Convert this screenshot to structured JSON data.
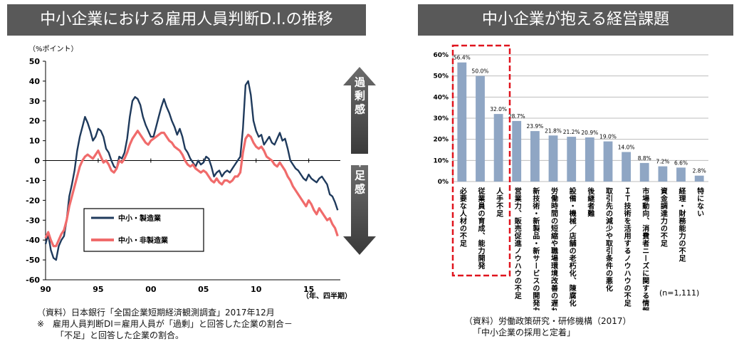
{
  "left": {
    "title": "中小企業における雇用人員判断D.I.の推移",
    "unit_label": "（%ポイント）",
    "x_unit_label": "（年、四半期）",
    "upper_arrow_label": "過剰感",
    "lower_arrow_label": "不足感",
    "notes": [
      "（資料）日本銀行「全国企業短期経済観測調査」2017年12月",
      "※　雇用人員判断DI＝雇用人員が「過剰」と回答した企業の割合－",
      "「不足」と回答した企業の割合。"
    ]
  },
  "right": {
    "title": "中小企業が抱える経営課題",
    "sample_note": "(n=1,111)",
    "notes": [
      "（資料）労働政策研究・研修機構（2017）",
      "「中小企業の採用と定着」"
    ]
  },
  "colors": {
    "manufacturing": "#1f3a5c",
    "non_manufacturing": "#f06b6b",
    "bar": "#8fa6c4",
    "highlight": "#e0141e",
    "header_bg": "#595959"
  },
  "chart_data": [
    {
      "type": "line",
      "title": "中小企業における雇用人員判断D.I.の推移",
      "ylabel": "（%ポイント）",
      "xlabel": "（年、四半期）",
      "ylim": [
        -60,
        50
      ],
      "yticks": [
        50,
        40,
        30,
        20,
        10,
        0,
        -10,
        -20,
        -30,
        -40,
        -50,
        -60
      ],
      "xlim": [
        1990,
        2018
      ],
      "xticks": [
        1990,
        1995,
        2000,
        2005,
        2010,
        2015
      ],
      "xtick_labels": [
        "90",
        "95",
        "00",
        "05",
        "10",
        "15"
      ],
      "legend_position": "lower-left",
      "series": [
        {
          "name": "中小・製造業",
          "points": [
            [
              1990.0,
              -42
            ],
            [
              1990.25,
              -37
            ],
            [
              1990.5,
              -45
            ],
            [
              1990.75,
              -49
            ],
            [
              1991.0,
              -50
            ],
            [
              1991.25,
              -43
            ],
            [
              1991.5,
              -40
            ],
            [
              1991.75,
              -38
            ],
            [
              1992.0,
              -30
            ],
            [
              1992.25,
              -18
            ],
            [
              1992.5,
              -12
            ],
            [
              1992.75,
              -5
            ],
            [
              1993.0,
              5
            ],
            [
              1993.25,
              12
            ],
            [
              1993.5,
              17
            ],
            [
              1993.75,
              22
            ],
            [
              1994.0,
              19
            ],
            [
              1994.25,
              15
            ],
            [
              1994.5,
              10
            ],
            [
              1994.75,
              12
            ],
            [
              1995.0,
              16
            ],
            [
              1995.25,
              15
            ],
            [
              1995.5,
              12
            ],
            [
              1995.75,
              6
            ],
            [
              1996.0,
              4
            ],
            [
              1996.25,
              0
            ],
            [
              1996.5,
              -3
            ],
            [
              1996.75,
              -4
            ],
            [
              1997.0,
              2
            ],
            [
              1997.25,
              1
            ],
            [
              1997.5,
              4
            ],
            [
              1997.75,
              11
            ],
            [
              1998.0,
              22
            ],
            [
              1998.25,
              30
            ],
            [
              1998.5,
              32
            ],
            [
              1998.75,
              31
            ],
            [
              1999.0,
              28
            ],
            [
              1999.25,
              22
            ],
            [
              1999.5,
              18
            ],
            [
              1999.75,
              15
            ],
            [
              2000.0,
              12
            ],
            [
              2000.25,
              12
            ],
            [
              2000.5,
              17
            ],
            [
              2000.75,
              22
            ],
            [
              2001.0,
              27
            ],
            [
              2001.25,
              31
            ],
            [
              2001.5,
              27
            ],
            [
              2001.75,
              24
            ],
            [
              2002.0,
              20
            ],
            [
              2002.25,
              17
            ],
            [
              2002.5,
              13
            ],
            [
              2002.75,
              16
            ],
            [
              2003.0,
              12
            ],
            [
              2003.25,
              6
            ],
            [
              2003.5,
              4
            ],
            [
              2003.75,
              1
            ],
            [
              2004.0,
              -1
            ],
            [
              2004.25,
              -3
            ],
            [
              2004.5,
              0
            ],
            [
              2004.75,
              -2
            ],
            [
              2005.0,
              -1
            ],
            [
              2005.25,
              2
            ],
            [
              2005.5,
              1
            ],
            [
              2005.75,
              -3
            ],
            [
              2006.0,
              -8
            ],
            [
              2006.25,
              -6
            ],
            [
              2006.5,
              -5
            ],
            [
              2006.75,
              -8
            ],
            [
              2007.0,
              -6
            ],
            [
              2007.25,
              -5
            ],
            [
              2007.5,
              -6
            ],
            [
              2007.75,
              -4
            ],
            [
              2008.0,
              -2
            ],
            [
              2008.25,
              0
            ],
            [
              2008.5,
              2
            ],
            [
              2008.75,
              16
            ],
            [
              2009.0,
              38
            ],
            [
              2009.25,
              40
            ],
            [
              2009.5,
              33
            ],
            [
              2009.75,
              20
            ],
            [
              2010.0,
              15
            ],
            [
              2010.25,
              12
            ],
            [
              2010.5,
              13
            ],
            [
              2010.75,
              8
            ],
            [
              2011.0,
              10
            ],
            [
              2011.25,
              12
            ],
            [
              2011.5,
              9
            ],
            [
              2011.75,
              8
            ],
            [
              2012.0,
              11
            ],
            [
              2012.25,
              14
            ],
            [
              2012.5,
              10
            ],
            [
              2012.75,
              11
            ],
            [
              2013.0,
              6
            ],
            [
              2013.25,
              0
            ],
            [
              2013.5,
              -2
            ],
            [
              2013.75,
              -4
            ],
            [
              2014.0,
              -5
            ],
            [
              2014.25,
              -7
            ],
            [
              2014.5,
              -9
            ],
            [
              2014.75,
              -10
            ],
            [
              2015.0,
              -7
            ],
            [
              2015.25,
              -9
            ],
            [
              2015.5,
              -10
            ],
            [
              2015.75,
              -11
            ],
            [
              2016.0,
              -9
            ],
            [
              2016.25,
              -8
            ],
            [
              2016.5,
              -10
            ],
            [
              2016.75,
              -12
            ],
            [
              2017.0,
              -17
            ],
            [
              2017.25,
              -18
            ],
            [
              2017.5,
              -21
            ],
            [
              2017.75,
              -25
            ]
          ]
        },
        {
          "name": "中小・非製造業",
          "points": [
            [
              1990.0,
              -39
            ],
            [
              1990.25,
              -36
            ],
            [
              1990.5,
              -40
            ],
            [
              1990.75,
              -43
            ],
            [
              1991.0,
              -43
            ],
            [
              1991.25,
              -40
            ],
            [
              1991.5,
              -37
            ],
            [
              1991.75,
              -35
            ],
            [
              1992.0,
              -30
            ],
            [
              1992.25,
              -23
            ],
            [
              1992.5,
              -18
            ],
            [
              1992.75,
              -13
            ],
            [
              1993.0,
              -8
            ],
            [
              1993.25,
              -3
            ],
            [
              1993.5,
              0
            ],
            [
              1993.75,
              2
            ],
            [
              1994.0,
              3
            ],
            [
              1994.25,
              2
            ],
            [
              1994.5,
              1
            ],
            [
              1994.75,
              3
            ],
            [
              1995.0,
              5
            ],
            [
              1995.25,
              2
            ],
            [
              1995.5,
              -1
            ],
            [
              1995.75,
              0
            ],
            [
              1996.0,
              -2
            ],
            [
              1996.25,
              -5
            ],
            [
              1996.5,
              -6
            ],
            [
              1996.75,
              -4
            ],
            [
              1997.0,
              0
            ],
            [
              1997.25,
              -1
            ],
            [
              1997.5,
              1
            ],
            [
              1997.75,
              4
            ],
            [
              1998.0,
              8
            ],
            [
              1998.25,
              11
            ],
            [
              1998.5,
              13
            ],
            [
              1998.75,
              15
            ],
            [
              1999.0,
              13
            ],
            [
              1999.25,
              11
            ],
            [
              1999.5,
              9
            ],
            [
              1999.75,
              8
            ],
            [
              2000.0,
              10
            ],
            [
              2000.25,
              11
            ],
            [
              2000.5,
              12
            ],
            [
              2000.75,
              13
            ],
            [
              2001.0,
              14
            ],
            [
              2001.25,
              14
            ],
            [
              2001.5,
              12
            ],
            [
              2001.75,
              10
            ],
            [
              2002.0,
              9
            ],
            [
              2002.25,
              7
            ],
            [
              2002.5,
              6
            ],
            [
              2002.75,
              5
            ],
            [
              2003.0,
              3
            ],
            [
              2003.25,
              0
            ],
            [
              2003.5,
              -2
            ],
            [
              2003.75,
              -3
            ],
            [
              2004.0,
              -2
            ],
            [
              2004.25,
              -4
            ],
            [
              2004.5,
              -5
            ],
            [
              2004.75,
              -6
            ],
            [
              2005.0,
              -5
            ],
            [
              2005.25,
              -6
            ],
            [
              2005.5,
              -8
            ],
            [
              2005.75,
              -10
            ],
            [
              2006.0,
              -11
            ],
            [
              2006.25,
              -9
            ],
            [
              2006.5,
              -11
            ],
            [
              2006.75,
              -12
            ],
            [
              2007.0,
              -10
            ],
            [
              2007.25,
              -10
            ],
            [
              2007.5,
              -11
            ],
            [
              2007.75,
              -10
            ],
            [
              2008.0,
              -8
            ],
            [
              2008.25,
              -8
            ],
            [
              2008.5,
              -6
            ],
            [
              2008.75,
              4
            ],
            [
              2009.0,
              11
            ],
            [
              2009.25,
              13
            ],
            [
              2009.5,
              12
            ],
            [
              2009.75,
              9
            ],
            [
              2010.0,
              7
            ],
            [
              2010.25,
              6
            ],
            [
              2010.5,
              7
            ],
            [
              2010.75,
              5
            ],
            [
              2011.0,
              2
            ],
            [
              2011.25,
              1
            ],
            [
              2011.5,
              0
            ],
            [
              2011.75,
              -2
            ],
            [
              2012.0,
              -3
            ],
            [
              2012.25,
              -1
            ],
            [
              2012.5,
              -3
            ],
            [
              2012.75,
              -5
            ],
            [
              2013.0,
              -8
            ],
            [
              2013.25,
              -10
            ],
            [
              2013.5,
              -13
            ],
            [
              2013.75,
              -15
            ],
            [
              2014.0,
              -17
            ],
            [
              2014.25,
              -19
            ],
            [
              2014.5,
              -21
            ],
            [
              2014.75,
              -23
            ],
            [
              2015.0,
              -20
            ],
            [
              2015.25,
              -22
            ],
            [
              2015.5,
              -25
            ],
            [
              2015.75,
              -27
            ],
            [
              2016.0,
              -24
            ],
            [
              2016.25,
              -26
            ],
            [
              2016.5,
              -28
            ],
            [
              2016.75,
              -30
            ],
            [
              2017.0,
              -29
            ],
            [
              2017.25,
              -32
            ],
            [
              2017.5,
              -34
            ],
            [
              2017.75,
              -38
            ]
          ]
        }
      ]
    },
    {
      "type": "bar",
      "title": "中小企業が抱える経営課題",
      "ylim": [
        0,
        60
      ],
      "yticks": [
        0,
        10,
        20,
        30,
        40,
        50,
        60
      ],
      "ytick_labels": [
        "0%",
        "10%",
        "20%",
        "30%",
        "40%",
        "50%",
        "60%"
      ],
      "grid": true,
      "categories": [
        "必要な人材の不足",
        "従業員の育成、能力開発",
        "人手不足",
        "営業力、販売促進ノウハウの不足",
        "新技術・新製品・新サービスの開発力",
        "労働時間の短縮や職場環境改善の遅れ",
        "設備・機械／店舗の老朽化、陳腐化",
        "後継者難",
        "取引先の減少や取引条件の悪化",
        "ＩＴ技術を活用するノウハウの不足",
        "市場動向、消費者ニーズに関する情報",
        "資金調達力の不足",
        "経理・財務能力の不足",
        "特にない"
      ],
      "values": [
        56.4,
        50.0,
        32.0,
        28.7,
        23.9,
        21.8,
        21.2,
        20.9,
        19.0,
        14.0,
        8.8,
        7.2,
        6.6,
        2.8
      ],
      "data_labels": [
        "56.4%",
        "50.0%",
        "32.0%",
        "28.7%",
        "23.9%",
        "21.8%",
        "21.2%",
        "20.9%",
        "19.0%",
        "14.0%",
        "8.8%",
        "7.2%",
        "6.6%",
        "2.8%"
      ],
      "highlighted_categories": [
        "必要な人材の不足",
        "従業員の育成、能力開発",
        "人手不足"
      ]
    }
  ]
}
